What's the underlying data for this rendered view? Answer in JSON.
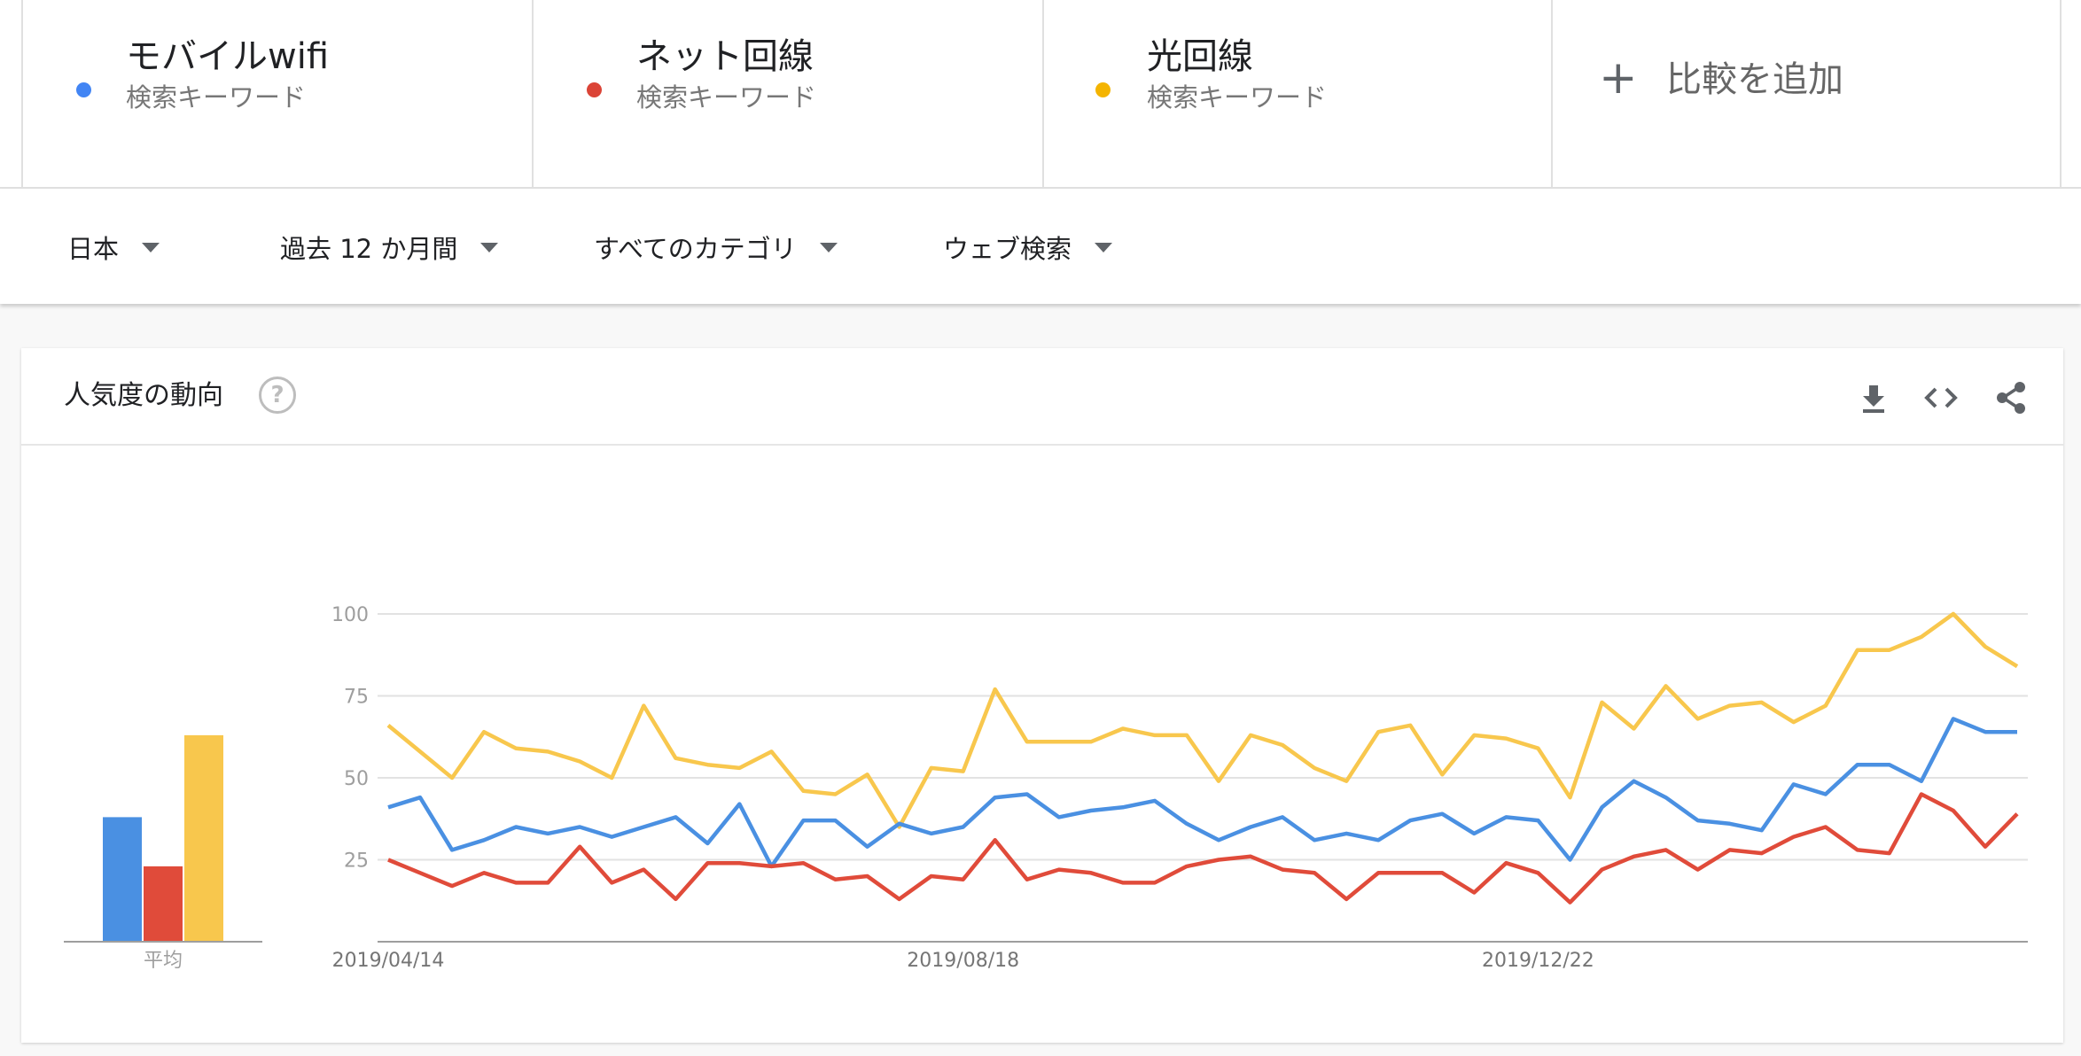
{
  "terms": [
    {
      "name": "モバイルwifi",
      "type": "検索キーワード",
      "color": "#4285F4"
    },
    {
      "name": "ネット回線",
      "type": "検索キーワード",
      "color": "#DB4437"
    },
    {
      "name": "光回線",
      "type": "検索キーワード",
      "color": "#F4B400"
    }
  ],
  "add_compare": "比較を追加",
  "filters": {
    "region": "日本",
    "period": "過去 12 か月間",
    "category": "すべてのカテゴリ",
    "search_type": "ウェブ検索"
  },
  "card": {
    "title": "人気度の動向",
    "help": "?"
  },
  "chart_data": {
    "type": "line",
    "y_ticks": [
      100,
      75,
      50,
      25
    ],
    "ylim": [
      0,
      100
    ],
    "x_tick_labels": [
      "2019/04/14",
      "2019/08/18",
      "2019/12/22"
    ],
    "x_tick_index": [
      0,
      18,
      36
    ],
    "average_label": "平均",
    "averages": [
      38,
      23,
      63
    ],
    "series": [
      {
        "name": "モバイルwifi",
        "color": "#4A90E2",
        "values": [
          41,
          44,
          28,
          31,
          35,
          33,
          35,
          32,
          35,
          38,
          30,
          42,
          23,
          37,
          37,
          29,
          36,
          33,
          35,
          44,
          45,
          38,
          40,
          41,
          43,
          36,
          31,
          35,
          38,
          31,
          33,
          31,
          37,
          39,
          33,
          38,
          37,
          25,
          41,
          49,
          44,
          37,
          36,
          34,
          48,
          45,
          54,
          54,
          49,
          68,
          64,
          64
        ]
      },
      {
        "name": "ネット回線",
        "color": "#E04B3A",
        "values": [
          25,
          21,
          17,
          21,
          18,
          18,
          29,
          18,
          22,
          13,
          24,
          24,
          23,
          24,
          19,
          20,
          13,
          20,
          19,
          31,
          19,
          22,
          21,
          18,
          18,
          23,
          25,
          26,
          22,
          21,
          13,
          21,
          21,
          21,
          15,
          24,
          21,
          12,
          22,
          26,
          28,
          22,
          28,
          27,
          32,
          35,
          28,
          27,
          45,
          40,
          29,
          39
        ]
      },
      {
        "name": "光回線",
        "color": "#F8C74D",
        "values": [
          66,
          58,
          50,
          64,
          59,
          58,
          55,
          50,
          72,
          56,
          54,
          53,
          58,
          46,
          45,
          51,
          35,
          53,
          52,
          77,
          61,
          61,
          61,
          65,
          63,
          63,
          49,
          63,
          60,
          53,
          49,
          64,
          66,
          51,
          63,
          62,
          59,
          44,
          73,
          65,
          78,
          68,
          72,
          73,
          67,
          72,
          89,
          89,
          93,
          100,
          90,
          84
        ]
      }
    ]
  }
}
